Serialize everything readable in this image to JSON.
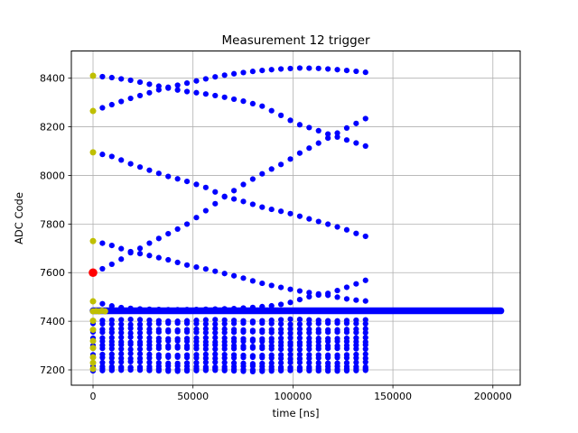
{
  "chart_data": {
    "type": "scatter",
    "title": "Measurement 12 trigger",
    "xlabel": "time [ns]",
    "ylabel": "ADC Code",
    "xlim": [
      -10843,
      213657
    ],
    "ylim": [
      7137,
      8512
    ],
    "xticks": [
      0,
      50000,
      100000,
      150000,
      200000
    ],
    "xtick_labels": [
      "0",
      "50000",
      "100000",
      "150000",
      "200000"
    ],
    "yticks": [
      7200,
      7400,
      7600,
      7800,
      8000,
      8200,
      8400
    ],
    "ytick_labels": [
      "7200",
      "7400",
      "7600",
      "7800",
      "8000",
      "8200",
      "8400"
    ],
    "grid": true,
    "grid_color": "#b0b0b0",
    "spine_color": "#000000",
    "dot_color": "#0000ff",
    "start_marker_color": "#bfbf00",
    "trigger_marker_color": "#ff0000",
    "dot_interval_ns": 4700,
    "dot_radius": 3.1,
    "start_marker_radius": 3.5,
    "trigger_marker_radius": 4.8,
    "band": {
      "name": "settled-band",
      "y": 7443,
      "x_start": 0,
      "x_end": 204000,
      "stroke_width": 7.5,
      "start_cluster": [
        [
          0,
          7441
        ],
        [
          1500,
          7442
        ],
        [
          3000,
          7441
        ],
        [
          4500,
          7443
        ],
        [
          6000,
          7441
        ]
      ]
    },
    "series": [
      {
        "name": "trace-8410-falling",
        "start": "yellow",
        "keypoints": [
          [
            0,
            8410
          ],
          [
            10000,
            8402
          ],
          [
            20000,
            8390
          ],
          [
            30000,
            8372
          ],
          [
            36000,
            8362
          ],
          [
            45000,
            8347
          ],
          [
            55000,
            8337
          ],
          [
            65000,
            8323
          ],
          [
            75000,
            8306
          ],
          [
            85000,
            8284
          ],
          [
            95000,
            8243
          ],
          [
            102000,
            8212
          ],
          [
            110000,
            8192
          ],
          [
            119000,
            8166
          ],
          [
            128000,
            8143
          ],
          [
            140000,
            8111
          ]
        ]
      },
      {
        "name": "trace-8265-rising",
        "start": "yellow",
        "keypoints": [
          [
            0,
            8265
          ],
          [
            9000,
            8290
          ],
          [
            18000,
            8315
          ],
          [
            27000,
            8337
          ],
          [
            36000,
            8360
          ],
          [
            45000,
            8376
          ],
          [
            54000,
            8393
          ],
          [
            63000,
            8409
          ],
          [
            72000,
            8420
          ],
          [
            82000,
            8430
          ],
          [
            92000,
            8437
          ],
          [
            104000,
            8442
          ],
          [
            114000,
            8440
          ],
          [
            124000,
            8434
          ],
          [
            132000,
            8428
          ],
          [
            140000,
            8421
          ]
        ]
      },
      {
        "name": "trace-8095-falling",
        "start": "yellow",
        "keypoints": [
          [
            0,
            8095
          ],
          [
            10000,
            8077
          ],
          [
            19000,
            8047
          ],
          [
            28000,
            8022
          ],
          [
            37000,
            7997
          ],
          [
            46000,
            7978
          ],
          [
            56000,
            7952
          ],
          [
            66000,
            7913
          ],
          [
            76000,
            7891
          ],
          [
            86000,
            7866
          ],
          [
            96000,
            7849
          ],
          [
            106000,
            7826
          ],
          [
            116000,
            7803
          ],
          [
            126000,
            7779
          ],
          [
            133000,
            7757
          ],
          [
            140000,
            7741
          ]
        ]
      },
      {
        "name": "trace-7600-trigger-rising",
        "start": "red",
        "keypoints": [
          [
            0,
            7600
          ],
          [
            5000,
            7617
          ],
          [
            10000,
            7637
          ],
          [
            14000,
            7655
          ],
          [
            19000,
            7683
          ],
          [
            24000,
            7702
          ],
          [
            29000,
            7725
          ],
          [
            34000,
            7745
          ],
          [
            39000,
            7766
          ],
          [
            46000,
            7794
          ],
          [
            53000,
            7834
          ],
          [
            60000,
            7877
          ],
          [
            66000,
            7913
          ],
          [
            76000,
            7967
          ],
          [
            86000,
            8013
          ],
          [
            96000,
            8053
          ],
          [
            103000,
            8090
          ],
          [
            111000,
            8125
          ],
          [
            119000,
            8160
          ],
          [
            128000,
            8200
          ],
          [
            134000,
            8223
          ],
          [
            140000,
            8251
          ]
        ]
      },
      {
        "name": "trace-7730-falling",
        "start": "yellow",
        "keypoints": [
          [
            0,
            7730
          ],
          [
            9000,
            7713
          ],
          [
            14000,
            7699
          ],
          [
            19000,
            7686
          ],
          [
            29000,
            7669
          ],
          [
            38000,
            7652
          ],
          [
            48000,
            7629
          ],
          [
            57000,
            7614
          ],
          [
            66000,
            7596
          ],
          [
            75000,
            7578
          ],
          [
            82000,
            7561
          ],
          [
            90000,
            7546
          ],
          [
            99000,
            7531
          ],
          [
            108000,
            7518
          ],
          [
            114000,
            7511
          ],
          [
            119000,
            7505
          ],
          [
            124000,
            7496
          ],
          [
            129000,
            7489
          ],
          [
            134000,
            7485
          ],
          [
            140000,
            7481
          ]
        ]
      },
      {
        "name": "trace-7482-late-rising",
        "start": "yellow",
        "keypoints": [
          [
            0,
            7482
          ],
          [
            8000,
            7465
          ],
          [
            15000,
            7455
          ],
          [
            25000,
            7450
          ],
          [
            40000,
            7447
          ],
          [
            55000,
            7449
          ],
          [
            70000,
            7452
          ],
          [
            80000,
            7457
          ],
          [
            90000,
            7464
          ],
          [
            96000,
            7472
          ],
          [
            101000,
            7482
          ],
          [
            106000,
            7497
          ],
          [
            111000,
            7506
          ],
          [
            116000,
            7511
          ],
          [
            121000,
            7523
          ],
          [
            127000,
            7540
          ],
          [
            133000,
            7558
          ],
          [
            140000,
            7580
          ]
        ]
      },
      {
        "name": "flat-7404",
        "start": "yellow",
        "keypoints": [
          [
            0,
            7402
          ],
          [
            20000,
            7408
          ],
          [
            40000,
            7399
          ],
          [
            60000,
            7407
          ],
          [
            80000,
            7400
          ],
          [
            100000,
            7409
          ],
          [
            120000,
            7401
          ],
          [
            140000,
            7407
          ]
        ]
      },
      {
        "name": "flat-7392",
        "keypoints": [
          [
            0,
            7391
          ],
          [
            20000,
            7386
          ],
          [
            40000,
            7393
          ],
          [
            60000,
            7388
          ],
          [
            80000,
            7394
          ],
          [
            100000,
            7387
          ],
          [
            120000,
            7393
          ],
          [
            140000,
            7389
          ]
        ]
      },
      {
        "name": "flat-7368",
        "start": "yellow",
        "keypoints": [
          [
            0,
            7365
          ],
          [
            20000,
            7371
          ],
          [
            40000,
            7363
          ],
          [
            60000,
            7370
          ],
          [
            80000,
            7362
          ],
          [
            100000,
            7369
          ],
          [
            120000,
            7364
          ],
          [
            140000,
            7370
          ]
        ]
      },
      {
        "name": "flat-7356",
        "keypoints": [
          [
            0,
            7356
          ],
          [
            20000,
            7351
          ],
          [
            40000,
            7358
          ],
          [
            60000,
            7352
          ],
          [
            80000,
            7357
          ],
          [
            100000,
            7350
          ],
          [
            120000,
            7356
          ],
          [
            140000,
            7352
          ]
        ]
      },
      {
        "name": "flat-7331",
        "keypoints": [
          [
            0,
            7330
          ],
          [
            20000,
            7335
          ],
          [
            40000,
            7327
          ],
          [
            60000,
            7333
          ],
          [
            80000,
            7326
          ],
          [
            100000,
            7332
          ],
          [
            120000,
            7328
          ],
          [
            140000,
            7334
          ]
        ]
      },
      {
        "name": "flat-7319",
        "start": "yellow",
        "keypoints": [
          [
            0,
            7319
          ],
          [
            20000,
            7313
          ],
          [
            40000,
            7320
          ],
          [
            60000,
            7314
          ],
          [
            80000,
            7319
          ],
          [
            100000,
            7312
          ],
          [
            120000,
            7318
          ],
          [
            140000,
            7314
          ]
        ]
      },
      {
        "name": "flat-7301",
        "keypoints": [
          [
            0,
            7300
          ],
          [
            20000,
            7305
          ],
          [
            40000,
            7297
          ],
          [
            60000,
            7303
          ],
          [
            80000,
            7296
          ],
          [
            100000,
            7302
          ],
          [
            120000,
            7298
          ],
          [
            140000,
            7304
          ]
        ]
      },
      {
        "name": "flat-7290",
        "start": "yellow",
        "keypoints": [
          [
            0,
            7290
          ],
          [
            20000,
            7284
          ],
          [
            40000,
            7291
          ],
          [
            60000,
            7285
          ],
          [
            80000,
            7290
          ],
          [
            100000,
            7283
          ],
          [
            120000,
            7289
          ],
          [
            140000,
            7285
          ]
        ]
      },
      {
        "name": "flat-7263",
        "keypoints": [
          [
            0,
            7262
          ],
          [
            20000,
            7267
          ],
          [
            40000,
            7259
          ],
          [
            60000,
            7265
          ],
          [
            80000,
            7258
          ],
          [
            100000,
            7264
          ],
          [
            120000,
            7260
          ],
          [
            140000,
            7266
          ]
        ]
      },
      {
        "name": "flat-7252",
        "start": "yellow",
        "keypoints": [
          [
            0,
            7252
          ],
          [
            20000,
            7246
          ],
          [
            40000,
            7253
          ],
          [
            60000,
            7247
          ],
          [
            80000,
            7252
          ],
          [
            100000,
            7245
          ],
          [
            120000,
            7251
          ],
          [
            140000,
            7247
          ]
        ]
      },
      {
        "name": "flat-7229",
        "start": "yellow",
        "keypoints": [
          [
            0,
            7229
          ],
          [
            20000,
            7234
          ],
          [
            40000,
            7226
          ],
          [
            60000,
            7232
          ],
          [
            80000,
            7225
          ],
          [
            100000,
            7231
          ],
          [
            120000,
            7227
          ],
          [
            140000,
            7233
          ]
        ]
      },
      {
        "name": "flat-7216",
        "keypoints": [
          [
            0,
            7215
          ],
          [
            20000,
            7210
          ],
          [
            40000,
            7217
          ],
          [
            60000,
            7211
          ],
          [
            80000,
            7216
          ],
          [
            100000,
            7209
          ],
          [
            120000,
            7215
          ],
          [
            140000,
            7211
          ]
        ]
      },
      {
        "name": "flat-7204",
        "start": "yellow",
        "keypoints": [
          [
            0,
            7204
          ],
          [
            20000,
            7208
          ],
          [
            40000,
            7201
          ],
          [
            60000,
            7206
          ],
          [
            80000,
            7200
          ],
          [
            100000,
            7207
          ],
          [
            120000,
            7202
          ],
          [
            140000,
            7206
          ]
        ]
      },
      {
        "name": "flat-7196",
        "keypoints": [
          [
            0,
            7196
          ],
          [
            20000,
            7200
          ],
          [
            40000,
            7194
          ],
          [
            60000,
            7199
          ],
          [
            80000,
            7193
          ],
          [
            100000,
            7198
          ],
          [
            120000,
            7195
          ],
          [
            140000,
            7199
          ]
        ]
      }
    ]
  }
}
